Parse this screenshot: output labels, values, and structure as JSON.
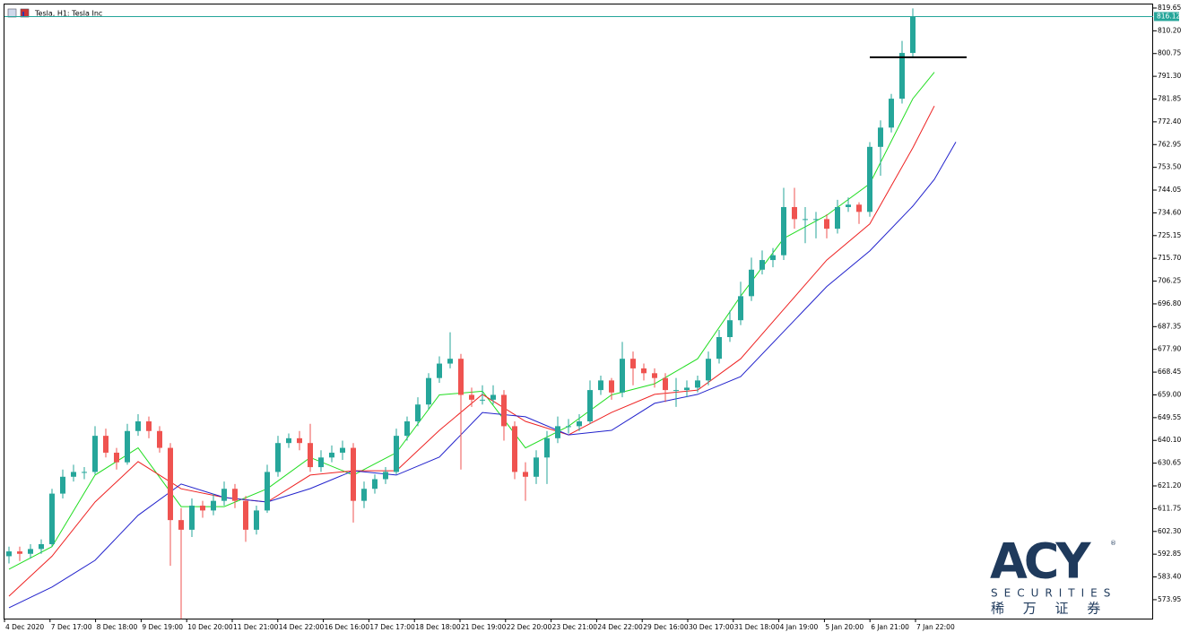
{
  "chart_data": {
    "type": "candlestick",
    "title": "Tesla, H1:  Tesla Inc",
    "up_color": "#26a69a",
    "down_color": "#ef5350",
    "ylim": [
      566.1,
      821.5
    ],
    "yticks": [
      819.65,
      {
        "value": 810.2,
        "label": "810.20"
      },
      800.75,
      {
        "value": 791.3,
        "label": "791.30"
      },
      781.85,
      {
        "value": 772.4,
        "label": "772.40"
      },
      762.95,
      {
        "value": 753.5,
        "label": "753.50"
      },
      744.05,
      {
        "value": 734.6,
        "label": "734.60"
      },
      725.15,
      {
        "value": 715.7,
        "label": "715.70"
      },
      706.25,
      {
        "value": 696.8,
        "label": "696.80"
      },
      687.35,
      {
        "value": 677.9,
        "label": "677.90"
      },
      668.45,
      {
        "value": 659.0,
        "label": "659.00"
      },
      649.55,
      {
        "value": 640.1,
        "label": "640.10"
      },
      630.65,
      {
        "value": 621.2,
        "label": "621.20"
      },
      611.75,
      {
        "value": 602.3,
        "label": "602.30"
      },
      592.85,
      {
        "value": 583.4,
        "label": "583.40"
      },
      573.95
    ],
    "xlabels": [
      "4 Dec 2020",
      "7 Dec 17:00",
      "8 Dec 18:00",
      "9 Dec 19:00",
      "10 Dec 20:00",
      "11 Dec 21:00",
      "14 Dec 22:00",
      "16 Dec 16:00",
      "17 Dec 17:00",
      "18 Dec 18:00",
      "21 Dec 19:00",
      "22 Dec 20:00",
      "23 Dec 21:00",
      "24 Dec 22:00",
      "29 Dec 16:00",
      "30 Dec 17:00",
      "31 Dec 18:00",
      "4 Jan 19:00",
      "5 Jan 20:00",
      "6 Jan 21:00",
      "7 Jan 22:00"
    ],
    "ohlc": [
      [
        592,
        596,
        589,
        594
      ],
      [
        594,
        596,
        590,
        593
      ],
      [
        593,
        597,
        591,
        595
      ],
      [
        595,
        599,
        593,
        597
      ],
      [
        597,
        620,
        596,
        618
      ],
      [
        618,
        628,
        616,
        625
      ],
      [
        625,
        630,
        623,
        627
      ],
      [
        627,
        629,
        624,
        627
      ],
      [
        627,
        646,
        626,
        642
      ],
      [
        642,
        645,
        633,
        635
      ],
      [
        635,
        637,
        628,
        631
      ],
      [
        631,
        647,
        630,
        644
      ],
      [
        644,
        651,
        642,
        648
      ],
      [
        648,
        650,
        641,
        644
      ],
      [
        644,
        646,
        635,
        637
      ],
      [
        637,
        639,
        588,
        607
      ],
      [
        607,
        612,
        566,
        603
      ],
      [
        603,
        616,
        600,
        613
      ],
      [
        613,
        615,
        608,
        611
      ],
      [
        611,
        618,
        609,
        615
      ],
      [
        615,
        623,
        613,
        620
      ],
      [
        620,
        622,
        612,
        615
      ],
      [
        615,
        617,
        598,
        603
      ],
      [
        603,
        613,
        601,
        611
      ],
      [
        611,
        630,
        610,
        627
      ],
      [
        627,
        642,
        625,
        639
      ],
      [
        639,
        643,
        637,
        641
      ],
      [
        641,
        644,
        636,
        639
      ],
      [
        639,
        647,
        627,
        629
      ],
      [
        629,
        636,
        627,
        633
      ],
      [
        633,
        638,
        631,
        635
      ],
      [
        635,
        640,
        632,
        637
      ],
      [
        637,
        639,
        606,
        615
      ],
      [
        615,
        623,
        612,
        620
      ],
      [
        620,
        626,
        618,
        624
      ],
      [
        624,
        629,
        622,
        627
      ],
      [
        627,
        645,
        626,
        642
      ],
      [
        642,
        650,
        640,
        648
      ],
      [
        648,
        658,
        646,
        655
      ],
      [
        655,
        668,
        653,
        666
      ],
      [
        666,
        675,
        664,
        672
      ],
      [
        672,
        685,
        670,
        674
      ],
      [
        674,
        676,
        628,
        659
      ],
      [
        659,
        662,
        654,
        657
      ],
      [
        657,
        663,
        655,
        657
      ],
      [
        657,
        663,
        655,
        659
      ],
      [
        659,
        661,
        640,
        646
      ],
      [
        646,
        648,
        624,
        627
      ],
      [
        627,
        631,
        615,
        625
      ],
      [
        625,
        636,
        622,
        633
      ],
      [
        633,
        644,
        622,
        641
      ],
      [
        641,
        650,
        639,
        646
      ],
      [
        646,
        649,
        643,
        646
      ],
      [
        646,
        651,
        644,
        648
      ],
      [
        648,
        665,
        647,
        661
      ],
      [
        661,
        667,
        659,
        665
      ],
      [
        665,
        666,
        657,
        660
      ],
      [
        660,
        681,
        658,
        674
      ],
      [
        674,
        677,
        663,
        670
      ],
      [
        670,
        672,
        665,
        668
      ],
      [
        668,
        670,
        662,
        666
      ],
      [
        666,
        668,
        656,
        661
      ],
      [
        661,
        666,
        654,
        661
      ],
      [
        661,
        665,
        658,
        662
      ],
      [
        662,
        667,
        660,
        665
      ],
      [
        665,
        677,
        663,
        674
      ],
      [
        674,
        686,
        672,
        683
      ],
      [
        683,
        694,
        681,
        690
      ],
      [
        690,
        706,
        688,
        700
      ],
      [
        700,
        716,
        698,
        711
      ],
      [
        711,
        719,
        709,
        715
      ],
      [
        715,
        720,
        712,
        717
      ],
      [
        717,
        745,
        715,
        737
      ],
      [
        737,
        745,
        728,
        732
      ],
      [
        732,
        737,
        722,
        732
      ],
      [
        732,
        735,
        724,
        732
      ],
      [
        732,
        734,
        724,
        728
      ],
      [
        728,
        740,
        726,
        737
      ],
      [
        737,
        741,
        735,
        738
      ],
      [
        738,
        739,
        730,
        735
      ],
      [
        735,
        764,
        733,
        762
      ],
      [
        762,
        773,
        750,
        770
      ],
      [
        770,
        784,
        768,
        782
      ],
      [
        782,
        806,
        780,
        801
      ],
      [
        801,
        819.5,
        799,
        816.12
      ]
    ],
    "ma_x": [
      0,
      4,
      8,
      12,
      16,
      20,
      24,
      28,
      32,
      36,
      40,
      44,
      48,
      52,
      56,
      60,
      64,
      68,
      72,
      76,
      80,
      84,
      86,
      88
    ],
    "series": [
      {
        "color": "#22dd22",
        "values": [
          586.6,
          596,
          625.7,
          637,
          612.6,
          612.6,
          620,
          633,
          625.7,
          635,
          659,
          660.5,
          637,
          646,
          659,
          663.6,
          674,
          700,
          724,
          733.6,
          746.7,
          782,
          793,
          null
        ]
      },
      {
        "color": "#ee2222",
        "values": [
          575.4,
          592,
          614.5,
          631.3,
          620,
          616.4,
          614.5,
          625.7,
          627.5,
          627.5,
          644.3,
          659.2,
          648,
          642.4,
          651.7,
          659.2,
          661,
          674,
          694.5,
          715,
          730,
          761.6,
          779,
          null
        ]
      },
      {
        "color": "#2222cc",
        "values": [
          570.6,
          579.2,
          590.3,
          609,
          622,
          616.4,
          614.5,
          620.1,
          627.5,
          625.7,
          633.2,
          651.7,
          649.9,
          642.4,
          644.3,
          655.5,
          659.2,
          666.6,
          685.3,
          704,
          718.8,
          737.4,
          748.5,
          764
        ]
      }
    ],
    "last_price": 816.12,
    "level": {
      "value": 799.2,
      "x": [
        80,
        89
      ]
    },
    "watermark": {
      "brand": "ACY",
      "line": "SECURITIES",
      "chinese": "稀 万 证 券"
    }
  }
}
